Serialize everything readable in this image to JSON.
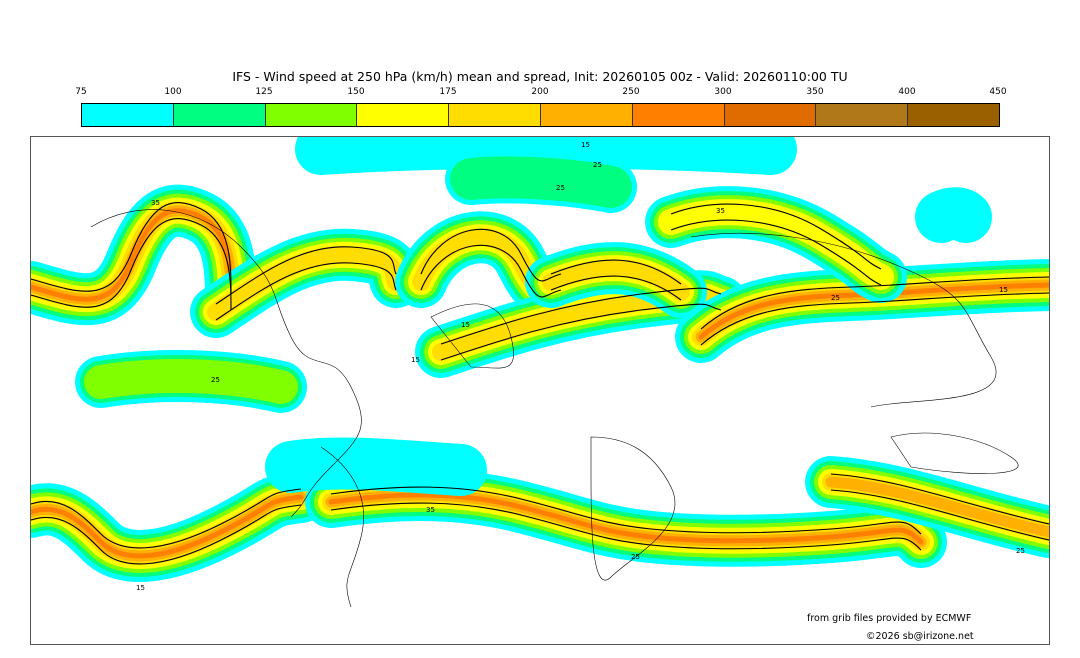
{
  "title": "IFS - Wind speed at 250 hPa (km/h) mean and spread, Init: 20260105 00z - Valid: 20260110:00 TU",
  "colorbar": {
    "ticks": [
      "75",
      "100",
      "125",
      "150",
      "175",
      "200",
      "250",
      "300",
      "350",
      "400",
      "450"
    ],
    "colors": [
      "#00ffff",
      "#00ff80",
      "#80ff00",
      "#ffff00",
      "#ffdd00",
      "#ffb000",
      "#ff8000",
      "#e06c00",
      "#b07818",
      "#9a6000"
    ]
  },
  "contour_labels": [
    "15",
    "25",
    "35",
    "25",
    "15",
    "15",
    "25",
    "35",
    "25",
    "15",
    "35",
    "25",
    "25",
    "15"
  ],
  "credits": {
    "source": "from grib files provided by ECMWF",
    "copyright": "©2026 sb@irizone.net"
  }
}
